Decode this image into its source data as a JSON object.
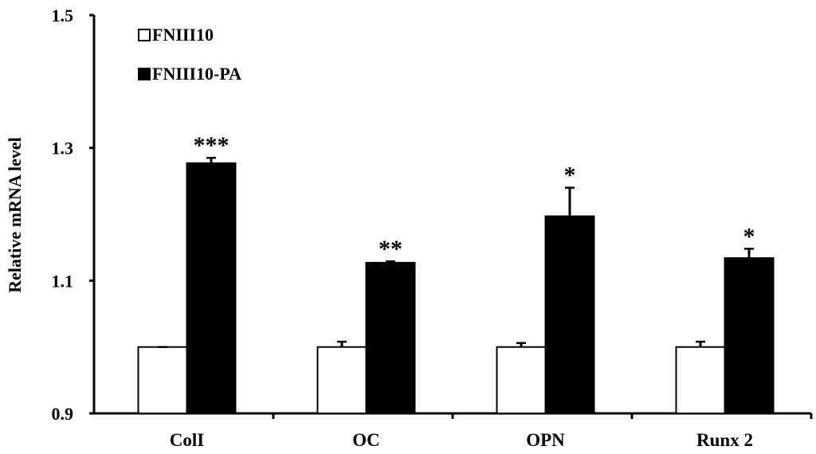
{
  "chart_data": {
    "type": "bar",
    "title": "",
    "xlabel": "",
    "ylabel": "Relative mRNA level",
    "ylim": [
      0.9,
      1.5
    ],
    "yticks": [
      "0.9",
      "1.1",
      "1.3",
      "1.5"
    ],
    "categories": [
      "ColI",
      "OC",
      "OPN",
      "Runx 2"
    ],
    "series": [
      {
        "name": "FNIII10",
        "color": "#ffffff",
        "values": [
          1.0,
          1.0,
          1.0,
          1.0
        ],
        "errors": [
          0.0,
          0.008,
          0.006,
          0.008
        ]
      },
      {
        "name": "FNIII10-PA",
        "color": "#000000",
        "values": [
          1.277,
          1.127,
          1.197,
          1.134
        ],
        "errors": [
          0.008,
          0.002,
          0.043,
          0.014
        ]
      }
    ],
    "significance": [
      "***",
      "**",
      "*",
      "*"
    ],
    "legend": "top-left",
    "grid": false
  }
}
